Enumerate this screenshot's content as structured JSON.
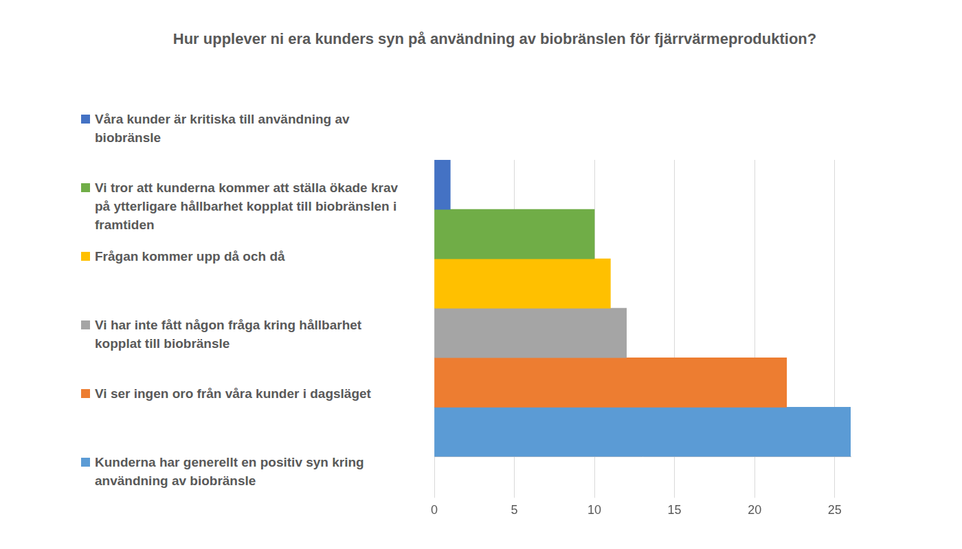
{
  "chart_data": {
    "type": "bar",
    "title": "Hur upplever ni era kunders syn på användning av biobränslen för fjärrvärmeproduktion?",
    "orientation": "horizontal",
    "categories": [
      null
    ],
    "series": [
      {
        "name": "Våra kunder är kritiska till användning av biobränsle",
        "color": "#4472c4",
        "values": [
          1
        ]
      },
      {
        "name": "Vi tror att kunderna kommer att ställa ökade krav på ytterligare hållbarhet kopplat till biobränslen i framtiden",
        "color": "#70ad47",
        "values": [
          10
        ]
      },
      {
        "name": "Frågan kommer upp då och då",
        "color": "#ffc000",
        "values": [
          11
        ]
      },
      {
        "name": "Vi har inte fått någon fråga kring hållbarhet kopplat till biobränsle",
        "color": "#a5a5a5",
        "values": [
          12
        ]
      },
      {
        "name": "Vi ser ingen oro från våra kunder i dagsläget",
        "color": "#ed7d31",
        "values": [
          22
        ]
      },
      {
        "name": "Kunderna har generellt en positiv syn kring användning av biobränsle",
        "color": "#5b9bd5",
        "values": [
          26
        ]
      }
    ],
    "xlim": [
      0,
      26
    ],
    "xticks": [
      0,
      5,
      10,
      15,
      20,
      25
    ],
    "grid": true,
    "legend": "left"
  }
}
